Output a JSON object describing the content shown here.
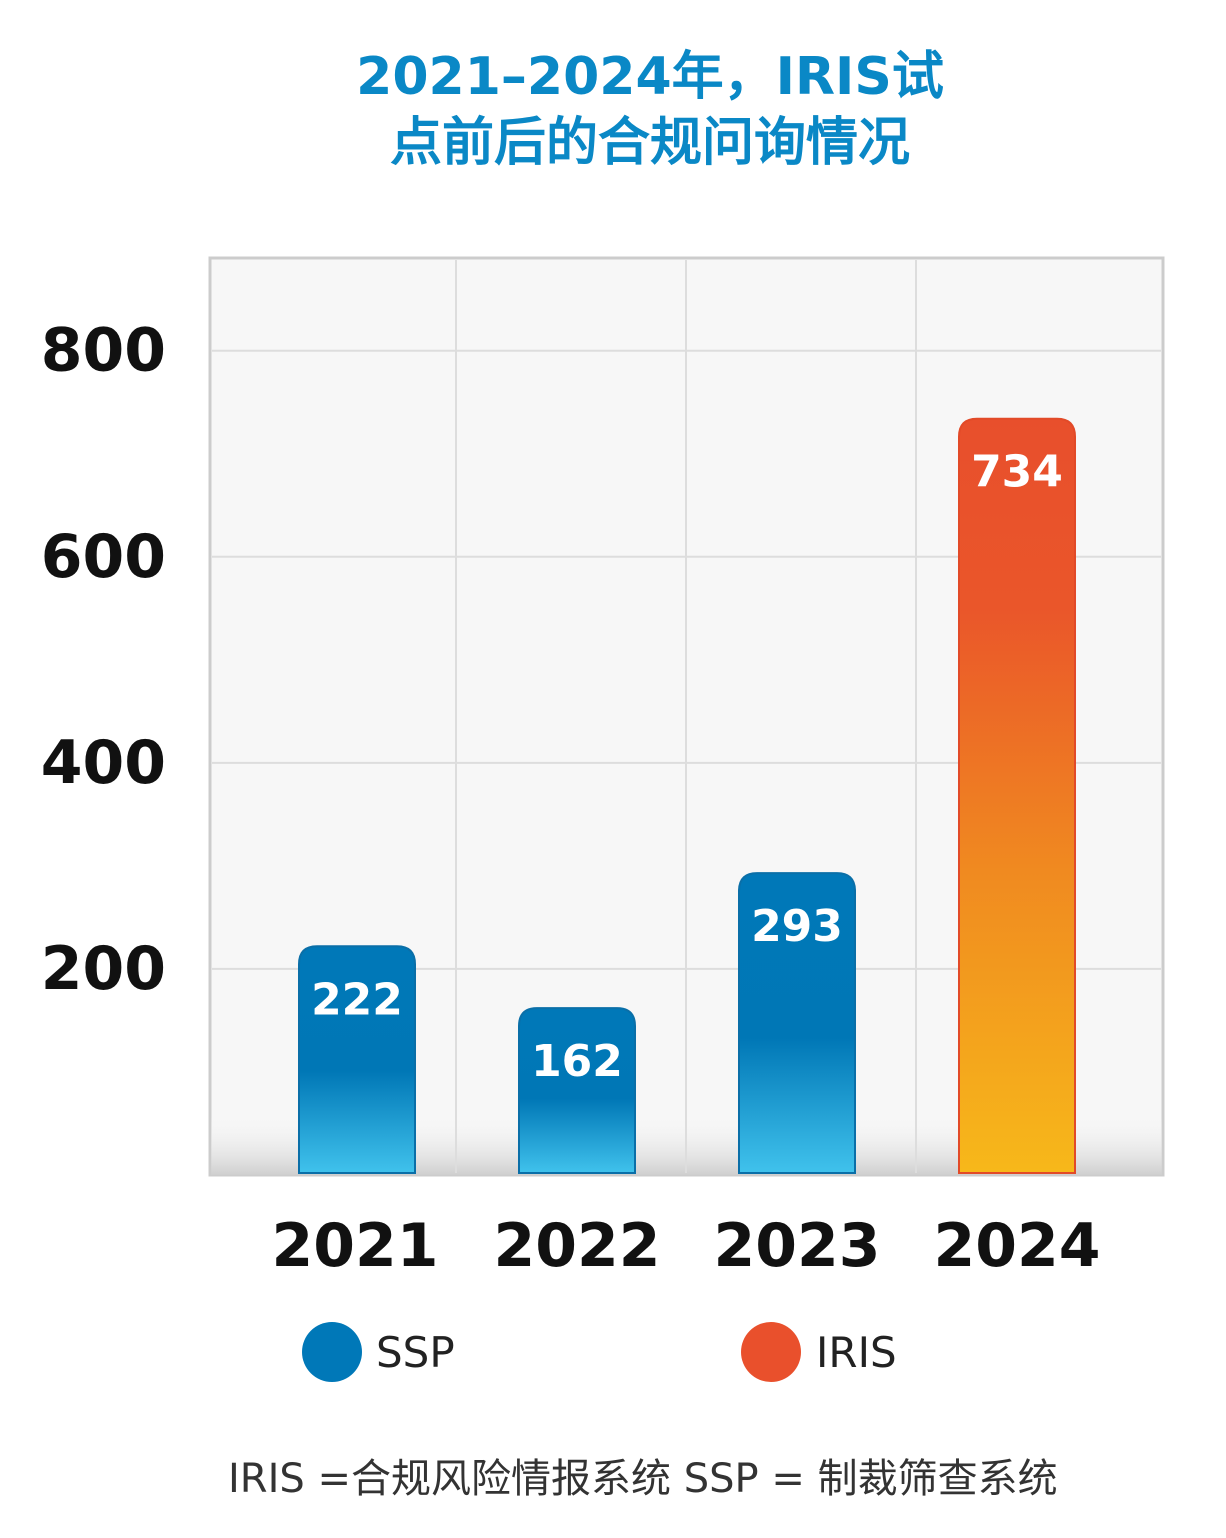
{
  "title_lines": [
    "2021–2024年，IRIS试",
    "点前后的合规问询情况"
  ],
  "footnote": "IRIS =合规风险情报系统 SSP = 制裁筛查系统",
  "colors": {
    "ssp_top": "#0078B8",
    "ssp_bottom": "#3FC0EA",
    "iris_top": "#E9502C",
    "iris_bottom": "#F6B01C",
    "title": "#0A88C6",
    "plot_bg": "#F7F7F7",
    "grid": "#DDDDDD"
  },
  "chart_data": {
    "type": "bar",
    "categories": [
      "2021",
      "2022",
      "2023",
      "2024"
    ],
    "values": [
      222,
      162,
      293,
      734
    ],
    "bar_series": [
      "SSP",
      "SSP",
      "SSP",
      "IRIS"
    ],
    "yticks": [
      200,
      400,
      600,
      800
    ],
    "ylim": [
      0,
      890
    ],
    "grid": true,
    "legend_position": "bottom",
    "legend": [
      {
        "name": "SSP",
        "color": "#0078B8"
      },
      {
        "name": "IRIS",
        "color": "#E9502C"
      }
    ]
  }
}
